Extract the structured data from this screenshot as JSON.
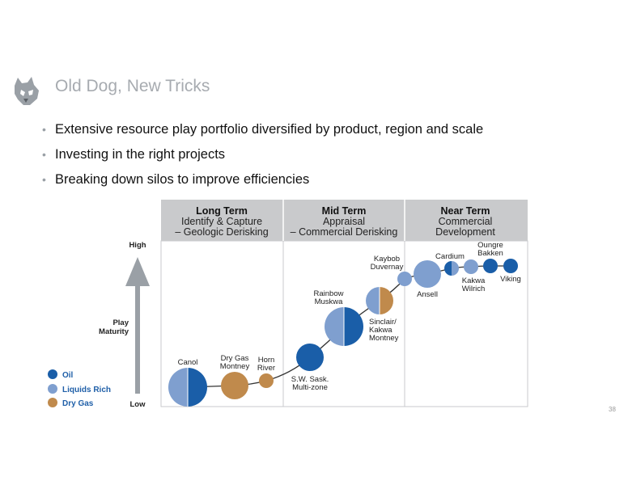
{
  "title": "Old Dog, New Tricks",
  "bullets": [
    "Extensive resource play portfolio diversified by product, region and scale",
    "Investing in the right projects",
    "Breaking down silos to improve efficiencies"
  ],
  "page_number": "38",
  "colors": {
    "oil": "#1a5ea8",
    "liquids_rich": "#7f9fcf",
    "dry_gas": "#c08a4c",
    "header_bg": "#c9cacc"
  },
  "diagram": {
    "columns": [
      {
        "heading": "Long Term",
        "line1": "Identify & Capture",
        "line2": "– Geologic Derisking"
      },
      {
        "heading": "Mid Term",
        "line1": "Appraisal",
        "line2": "– Commercial Derisking"
      },
      {
        "heading": "Near Term",
        "line1": "Commercial",
        "line2": "Development"
      }
    ],
    "axis": {
      "high": "High",
      "low": "Low",
      "label_line1": "Play",
      "label_line2": "Maturity"
    },
    "legend": [
      {
        "key": "oil",
        "label": "Oil"
      },
      {
        "key": "liquids_rich",
        "label": "Liquids Rich"
      },
      {
        "key": "dry_gas",
        "label": "Dry Gas"
      }
    ],
    "plays": {
      "canol": "Canol",
      "dry_gas_montney_1": "Dry Gas",
      "dry_gas_montney_2": "Montney",
      "horn_river_1": "Horn",
      "horn_river_2": "River",
      "sw_sask_1": "S.W. Sask.",
      "sw_sask_2": "Multi-zone",
      "rainbow_1": "Rainbow",
      "rainbow_2": "Muskwa",
      "sinclair_1": "Sinclair/",
      "sinclair_2": "Kakwa",
      "sinclair_3": "Montney",
      "kaybob_1": "Kaybob",
      "kaybob_2": "Duvernay",
      "ansell": "Ansell",
      "cardium": "Cardium",
      "kakwa_wilrich_1": "Kakwa",
      "kakwa_wilrich_2": "Wilrich",
      "oungre_1": "Oungre",
      "oungre_2": "Bakken",
      "viking": "Viking"
    }
  }
}
